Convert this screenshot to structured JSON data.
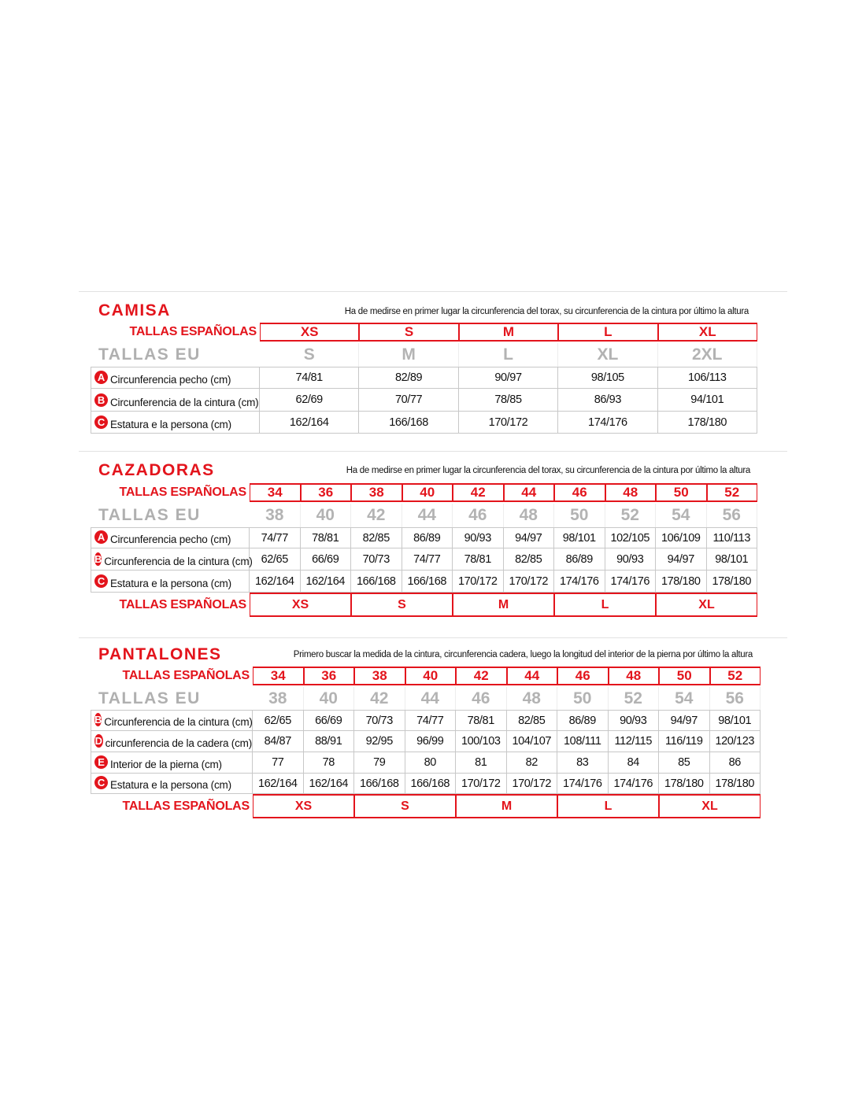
{
  "accent_color": "#e3141c",
  "sections": [
    {
      "title": "CAMISA",
      "note": "Ha de medirse en primer lugar la circunferencia del torax, su circunferencia de la cintura por último la altura",
      "spanish_label": "TALLAS ESPAÑOLAS",
      "eu_label": "TALLAS EU",
      "spanish_sizes": [
        "XS",
        "S",
        "M",
        "L",
        "XL"
      ],
      "eu_sizes": [
        "S",
        "M",
        "L",
        "XL",
        "2XL"
      ],
      "rows": [
        {
          "badge": "A",
          "label": "Circunferencia pecho (cm)",
          "values": [
            "74/81",
            "82/89",
            "90/97",
            "98/105",
            "106/113"
          ]
        },
        {
          "badge": "B",
          "label": "Circunferencia de la cintura (cm)",
          "values": [
            "62/69",
            "70/77",
            "78/85",
            "86/93",
            "94/101"
          ]
        },
        {
          "badge": "C",
          "label": "Estatura e la persona (cm)",
          "values": [
            "162/164",
            "166/168",
            "170/172",
            "174/176",
            "178/180"
          ]
        }
      ]
    },
    {
      "title": "CAZADORAS",
      "note": "Ha de medirse en primer lugar la circunferencia del torax, su circunferencia de la cintura por último la altura",
      "spanish_label": "TALLAS ESPAÑOLAS",
      "eu_label": "TALLAS EU",
      "spanish_sizes": [
        "34",
        "36",
        "38",
        "40",
        "42",
        "44",
        "46",
        "48",
        "50",
        "52"
      ],
      "eu_sizes": [
        "38",
        "40",
        "42",
        "44",
        "46",
        "48",
        "50",
        "52",
        "54",
        "56"
      ],
      "rows": [
        {
          "badge": "A",
          "label": "Circunferencia pecho (cm)",
          "values": [
            "74/77",
            "78/81",
            "82/85",
            "86/89",
            "90/93",
            "94/97",
            "98/101",
            "102/105",
            "106/109",
            "110/113"
          ]
        },
        {
          "badge": "B",
          "label": "Circunferencia de la cintura (cm)",
          "values": [
            "62/65",
            "66/69",
            "70/73",
            "74/77",
            "78/81",
            "82/85",
            "86/89",
            "90/93",
            "94/97",
            "98/101"
          ]
        },
        {
          "badge": "C",
          "label": "Estatura e la persona (cm)",
          "values": [
            "162/164",
            "162/164",
            "166/168",
            "166/168",
            "170/172",
            "170/172",
            "174/176",
            "174/176",
            "178/180",
            "178/180"
          ]
        }
      ],
      "footer_label": "TALLAS ESPAÑOLAS",
      "footer_sizes": [
        "XS",
        "S",
        "M",
        "L",
        "XL"
      ]
    },
    {
      "title": "PANTALONES",
      "note": "Primero buscar la medida de la cintura, circunferencia cadera, luego la longitud del interior de la pierna por último la altura",
      "spanish_label": "TALLAS ESPAÑOLAS",
      "eu_label": "TALLAS EU",
      "spanish_sizes": [
        "34",
        "36",
        "38",
        "40",
        "42",
        "44",
        "46",
        "48",
        "50",
        "52"
      ],
      "eu_sizes": [
        "38",
        "40",
        "42",
        "44",
        "46",
        "48",
        "50",
        "52",
        "54",
        "56"
      ],
      "rows": [
        {
          "badge": "B",
          "label": "Circunferencia de la cintura (cm)",
          "values": [
            "62/65",
            "66/69",
            "70/73",
            "74/77",
            "78/81",
            "82/85",
            "86/89",
            "90/93",
            "94/97",
            "98/101"
          ]
        },
        {
          "badge": "D",
          "label": "circunferencia de la cadera (cm)",
          "values": [
            "84/87",
            "88/91",
            "92/95",
            "96/99",
            "100/103",
            "104/107",
            "108/111",
            "112/115",
            "116/119",
            "120/123"
          ]
        },
        {
          "badge": "E",
          "label": "Interior de la pierna (cm)",
          "values": [
            "77",
            "78",
            "79",
            "80",
            "81",
            "82",
            "83",
            "84",
            "85",
            "86"
          ]
        },
        {
          "badge": "C",
          "label": "Estatura e la persona (cm)",
          "values": [
            "162/164",
            "162/164",
            "166/168",
            "166/168",
            "170/172",
            "170/172",
            "174/176",
            "174/176",
            "178/180",
            "178/180"
          ]
        }
      ],
      "footer_label": "TALLAS ESPAÑOLAS",
      "footer_sizes": [
        "XS",
        "S",
        "M",
        "L",
        "XL"
      ]
    }
  ]
}
